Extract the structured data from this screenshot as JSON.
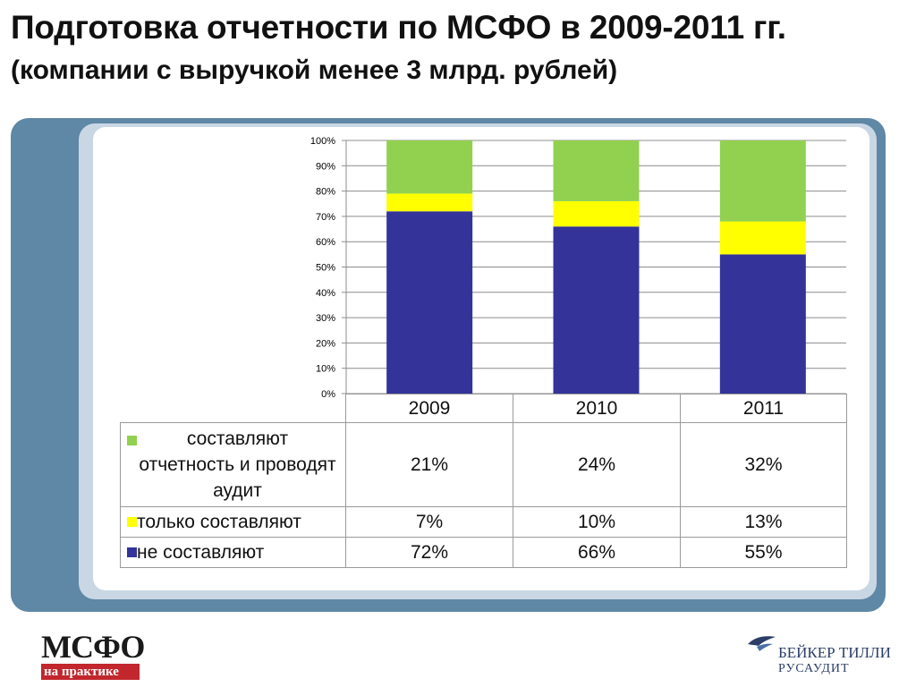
{
  "page": {
    "title": "Подготовка отчетности по МСФО в 2009-2011 гг.",
    "subtitle": "(компании с выручкой менее 3 млрд. рублей)"
  },
  "chart_data": {
    "type": "bar",
    "stacked": true,
    "percent_stacked": true,
    "categories": [
      "2009",
      "2010",
      "2011"
    ],
    "y_ticks": [
      "0%",
      "10%",
      "20%",
      "30%",
      "40%",
      "50%",
      "60%",
      "70%",
      "80%",
      "90%",
      "100%"
    ],
    "ylim": [
      0,
      100
    ],
    "grid": true,
    "legend": "data-table",
    "series": [
      {
        "name": "не составляют",
        "values": [
          72,
          66,
          55
        ],
        "labels": [
          "72%",
          "66%",
          "55%"
        ],
        "color": "#333399"
      },
      {
        "name": "только составляют",
        "values": [
          7,
          10,
          13
        ],
        "labels": [
          "7%",
          "10%",
          "13%"
        ],
        "color": "#ffff00"
      },
      {
        "name": "составляют отчетность и проводят аудит",
        "values": [
          21,
          24,
          32
        ],
        "labels": [
          "21%",
          "24%",
          "32%"
        ],
        "color": "#92d050"
      }
    ],
    "table_rows": [
      {
        "label": "составляют отчетность и проводят аудит",
        "series_index": 2
      },
      {
        "label": "только составляют",
        "series_index": 1
      },
      {
        "label": "не составляют",
        "series_index": 0
      }
    ]
  },
  "logos": {
    "left": {
      "word": "МСФО",
      "bar": "на практике"
    },
    "right": {
      "line1": "БЕЙКЕР ТИЛЛИ",
      "line2": "РУСАУДИТ"
    }
  },
  "colors": {
    "frame_outer": "#5f87a6",
    "frame_band": "#c9d7e4",
    "logo_red": "#c1272d",
    "logo_navy": "#2c3e66"
  }
}
